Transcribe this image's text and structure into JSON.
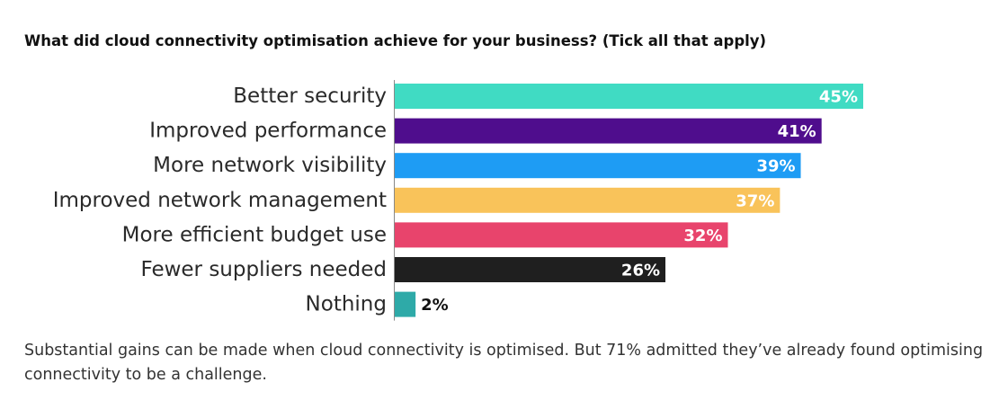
{
  "title": "What did cloud connectivity optimisation achieve for your business? (Tick all that apply)",
  "caption": "Substantial gains can be made when cloud connectivity is optimised. But 71% admitted they’ve already found optimising connectivity to be a challenge.",
  "chart_data": {
    "type": "bar",
    "orientation": "horizontal",
    "categories": [
      "Better security",
      "Improved performance",
      "More network visibility",
      "Improved network management",
      "More efficient budget use",
      "Fewer suppliers needed",
      "Nothing"
    ],
    "values": [
      45,
      41,
      39,
      37,
      32,
      26,
      2
    ],
    "value_labels": [
      "45%",
      "41%",
      "39%",
      "37%",
      "32%",
      "26%",
      "2%"
    ],
    "colors": [
      "#40dbc3",
      "#4f0d8d",
      "#1e9cf4",
      "#f9c35a",
      "#e8446c",
      "#1f1f1f",
      "#2eaaa8"
    ],
    "label_colors": [
      "#ffffff",
      "#ffffff",
      "#ffffff",
      "#ffffff",
      "#ffffff",
      "#ffffff",
      "#111111"
    ],
    "label_position": [
      "inside-end",
      "inside-end",
      "inside-end",
      "inside-end",
      "inside-end",
      "inside-end",
      "outside-end"
    ],
    "xlim": [
      0,
      45
    ],
    "grid": false,
    "legend": "none",
    "axis_line_color": "#888888"
  }
}
